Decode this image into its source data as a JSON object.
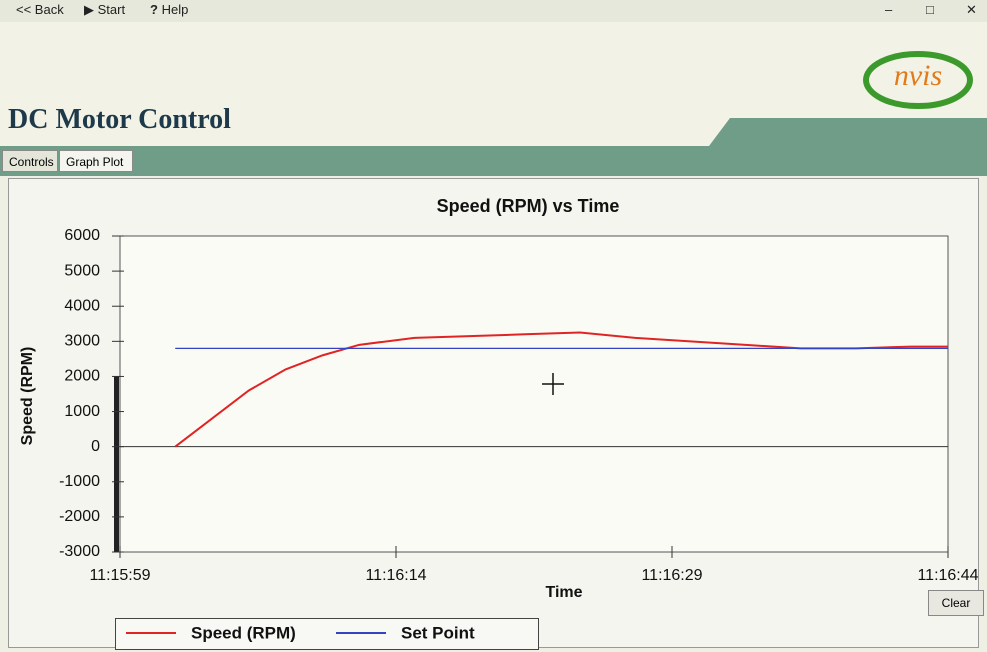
{
  "toolbar": {
    "back": "<< Back",
    "start": "Start",
    "help": "Help"
  },
  "header": {
    "title": "DC Motor Control",
    "logo": "nvis"
  },
  "tabs": [
    "Controls",
    "Graph Plot"
  ],
  "clear_button": "Clear",
  "chart_data": {
    "type": "line",
    "title": "Speed (RPM) vs Time",
    "x_label": "Time",
    "y_label": "Speed (RPM)",
    "x": [
      40562,
      40564,
      40566,
      40568,
      40570,
      40572,
      40575,
      40578,
      40581,
      40584,
      40587,
      40590,
      40593,
      40596,
      40599,
      40602,
      40604
    ],
    "series": [
      {
        "name": "Speed (RPM)",
        "color": "#e02424",
        "values": [
          0,
          800,
          1600,
          2200,
          2600,
          2900,
          3100,
          3150,
          3200,
          3250,
          3100,
          3000,
          2900,
          2800,
          2800,
          2850,
          2850
        ]
      },
      {
        "name": "Set Point",
        "color": "#3442c4",
        "values": [
          2800,
          2800,
          2800,
          2800,
          2800,
          2800,
          2800,
          2800,
          2800,
          2800,
          2800,
          2800,
          2800,
          2800,
          2800,
          2800,
          2800
        ]
      }
    ],
    "xlim": [
      40559,
      40604
    ],
    "xticks": [
      {
        "value": 40559,
        "label": "11:15:59"
      },
      {
        "value": 40574,
        "label": "11:16:14"
      },
      {
        "value": 40589,
        "label": "11:16:29"
      },
      {
        "value": 40604,
        "label": "11:16:44"
      }
    ],
    "ylim": [
      -3000,
      6000
    ],
    "yticks": [
      6000,
      5000,
      4000,
      3000,
      2000,
      1000,
      0,
      -1000,
      -2000,
      -3000
    ]
  }
}
